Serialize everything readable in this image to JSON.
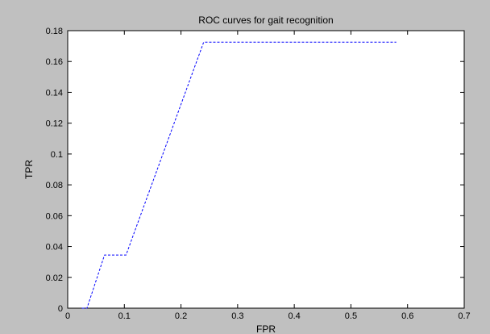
{
  "chart_data": {
    "type": "line",
    "title": "ROC curves for gait recognition",
    "xlabel": "FPR",
    "ylabel": "TPR",
    "xlim": [
      0,
      0.7
    ],
    "ylim": [
      0,
      0.18
    ],
    "xticks": [
      "0",
      "0.1",
      "0.2",
      "0.3",
      "0.4",
      "0.5",
      "0.6",
      "0.7"
    ],
    "yticks": [
      "0",
      "0.02",
      "0.04",
      "0.06",
      "0.08",
      "0.1",
      "0.12",
      "0.14",
      "0.16",
      "0.18"
    ],
    "grid": false,
    "series": [
      {
        "color": "#0000ff",
        "line_style": "dashed",
        "x": [
          0.025,
          0.034,
          0.065,
          0.103,
          0.24,
          0.58
        ],
        "y": [
          0,
          0,
          0.0345,
          0.0345,
          0.1725,
          0.1725
        ]
      }
    ]
  }
}
